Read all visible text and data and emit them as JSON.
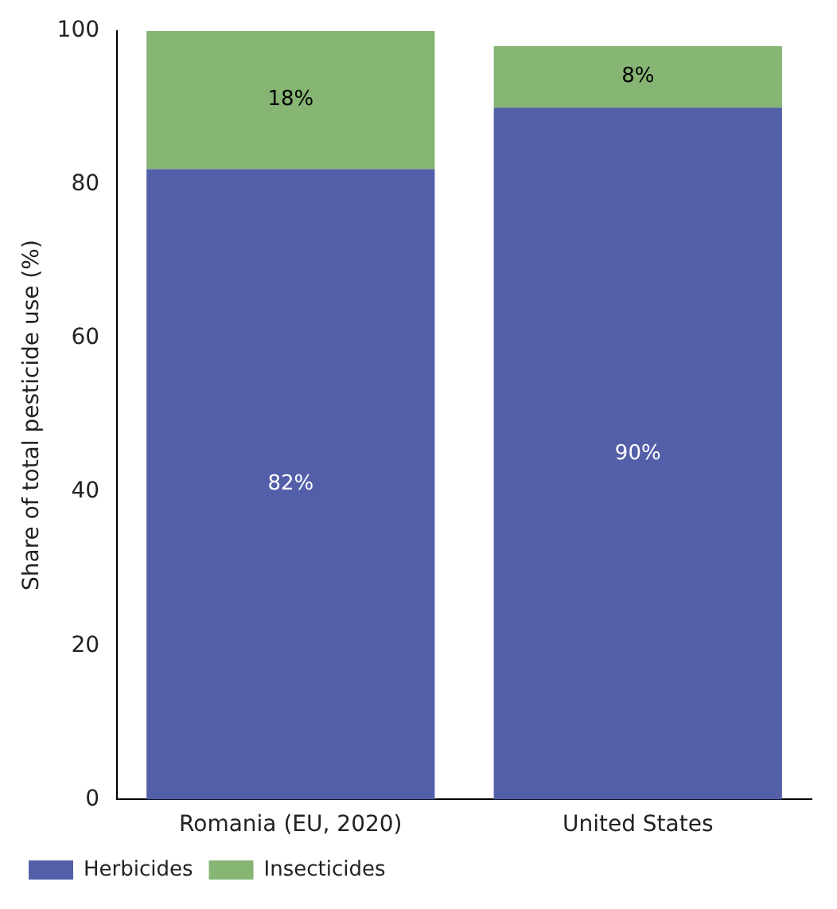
{
  "chart_data": {
    "type": "bar",
    "stacked": true,
    "ylabel": "Share of total pesticide use (%)",
    "categories": [
      "Romania (EU, 2020)",
      "United States"
    ],
    "series": [
      {
        "name": "Herbicides",
        "color": "#535fa8",
        "values": [
          82,
          90
        ],
        "value_labels": [
          "82%",
          "90%"
        ]
      },
      {
        "name": "Insecticides",
        "color": "#86b574",
        "values": [
          18,
          8
        ],
        "value_labels": [
          "18%",
          "8%"
        ]
      }
    ],
    "ylim": [
      0,
      100
    ],
    "yticks": [
      0,
      20,
      40,
      60,
      80,
      100
    ],
    "grid": false,
    "legend": "bottom left"
  }
}
